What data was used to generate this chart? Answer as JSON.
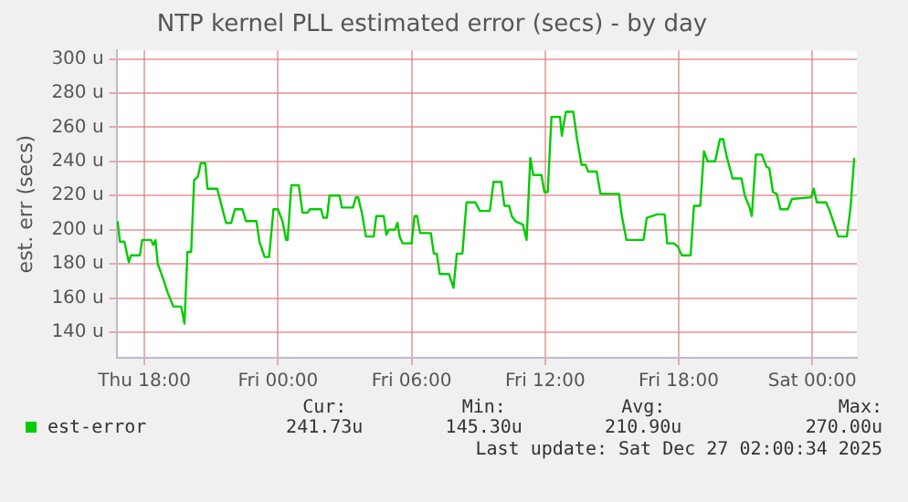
{
  "chart_data": {
    "type": "line",
    "title": "NTP kernel PLL estimated error (secs) - by day",
    "ylabel": "est. err (secs)",
    "x": [
      "2025-12-25T16:48",
      "2025-12-25T16:54",
      "2025-12-25T17:06",
      "2025-12-25T17:18",
      "2025-12-25T17:24",
      "2025-12-25T17:48",
      "2025-12-25T17:54",
      "2025-12-25T18:18",
      "2025-12-25T18:24",
      "2025-12-25T18:30",
      "2025-12-25T18:36",
      "2025-12-25T18:51",
      "2025-12-25T19:03",
      "2025-12-25T19:18",
      "2025-12-25T19:39",
      "2025-12-25T19:48",
      "2025-12-25T19:56",
      "2025-12-25T20:06",
      "2025-12-25T20:14",
      "2025-12-25T20:24",
      "2025-12-25T20:32",
      "2025-12-25T20:44",
      "2025-12-25T20:50",
      "2025-12-25T21:16",
      "2025-12-25T21:27",
      "2025-12-25T21:40",
      "2025-12-25T21:54",
      "2025-12-25T22:04",
      "2025-12-25T22:24",
      "2025-12-25T22:34",
      "2025-12-25T23:02",
      "2025-12-25T23:10",
      "2025-12-25T23:24",
      "2025-12-25T23:36",
      "2025-12-25T23:48",
      "2025-12-26T00:00",
      "2025-12-26T00:12",
      "2025-12-26T00:22",
      "2025-12-26T00:26",
      "2025-12-26T00:36",
      "2025-12-26T00:56",
      "2025-12-26T01:06",
      "2025-12-26T01:20",
      "2025-12-26T01:26",
      "2025-12-26T01:56",
      "2025-12-26T02:02",
      "2025-12-26T02:12",
      "2025-12-26T02:19",
      "2025-12-26T02:46",
      "2025-12-26T02:52",
      "2025-12-26T03:22",
      "2025-12-26T03:30",
      "2025-12-26T03:36",
      "2025-12-26T03:46",
      "2025-12-26T03:57",
      "2025-12-26T04:18",
      "2025-12-26T04:25",
      "2025-12-26T04:45",
      "2025-12-26T04:52",
      "2025-12-26T04:59",
      "2025-12-26T05:15",
      "2025-12-26T05:22",
      "2025-12-26T05:28",
      "2025-12-26T05:36",
      "2025-12-26T06:00",
      "2025-12-26T06:08",
      "2025-12-26T06:15",
      "2025-12-26T06:23",
      "2025-12-26T06:52",
      "2025-12-26T07:00",
      "2025-12-26T07:08",
      "2025-12-26T07:16",
      "2025-12-26T07:41",
      "2025-12-26T07:53",
      "2025-12-26T08:02",
      "2025-12-26T08:17",
      "2025-12-26T08:28",
      "2025-12-26T08:52",
      "2025-12-26T09:04",
      "2025-12-26T09:31",
      "2025-12-26T09:41",
      "2025-12-26T10:02",
      "2025-12-26T10:10",
      "2025-12-26T10:23",
      "2025-12-26T10:30",
      "2025-12-26T10:40",
      "2025-12-26T11:00",
      "2025-12-26T11:10",
      "2025-12-26T11:20",
      "2025-12-26T11:28",
      "2025-12-26T11:50",
      "2025-12-26T11:58",
      "2025-12-26T12:07",
      "2025-12-26T12:17",
      "2025-12-26T12:40",
      "2025-12-26T12:45",
      "2025-12-26T12:50",
      "2025-12-26T12:56",
      "2025-12-26T13:16",
      "2025-12-26T13:26",
      "2025-12-26T13:38",
      "2025-12-26T13:49",
      "2025-12-26T13:56",
      "2025-12-26T14:19",
      "2025-12-26T14:29",
      "2025-12-26T15:19",
      "2025-12-26T15:26",
      "2025-12-26T15:39",
      "2025-12-26T16:25",
      "2025-12-26T16:34",
      "2025-12-26T17:02",
      "2025-12-26T17:22",
      "2025-12-26T17:29",
      "2025-12-26T17:47",
      "2025-12-26T17:58",
      "2025-12-26T18:08",
      "2025-12-26T18:32",
      "2025-12-26T18:41",
      "2025-12-26T18:58",
      "2025-12-26T19:08",
      "2025-12-26T19:18",
      "2025-12-26T19:38",
      "2025-12-26T19:51",
      "2025-12-26T20:00",
      "2025-12-26T20:08",
      "2025-12-26T20:25",
      "2025-12-26T20:49",
      "2025-12-26T20:58",
      "2025-12-26T21:11",
      "2025-12-26T21:17",
      "2025-12-26T21:28",
      "2025-12-26T21:44",
      "2025-12-26T21:56",
      "2025-12-26T22:04",
      "2025-12-26T22:14",
      "2025-12-26T22:24",
      "2025-12-26T22:34",
      "2025-12-26T22:54",
      "2025-12-26T23:05",
      "2025-12-26T23:57",
      "2025-12-27T00:04",
      "2025-12-27T00:12",
      "2025-12-27T00:37",
      "2025-12-27T00:47",
      "2025-12-27T01:10",
      "2025-12-27T01:33",
      "2025-12-27T01:43",
      "2025-12-27T01:53"
    ],
    "series": [
      {
        "name": "est-error",
        "color": "#00cc00",
        "values": [
          205,
          193,
          193,
          181,
          185,
          185,
          194,
          194,
          191,
          194,
          180,
          171,
          163,
          155,
          155,
          145,
          187,
          187,
          229,
          231,
          239,
          239,
          224,
          224,
          215,
          204,
          204,
          212,
          212,
          205,
          205,
          193,
          184,
          184,
          212,
          212,
          205,
          194,
          194,
          226,
          226,
          210,
          210,
          212,
          212,
          207,
          207,
          220,
          220,
          213,
          213,
          219,
          219,
          210,
          196,
          196,
          208,
          208,
          197,
          200,
          200,
          204,
          196,
          192,
          192,
          208,
          208,
          198,
          198,
          186,
          186,
          174,
          174,
          166,
          186,
          186,
          216,
          216,
          211,
          211,
          228,
          228,
          214,
          214,
          208,
          205,
          203,
          194,
          242,
          232,
          232,
          222,
          222,
          266,
          266,
          255,
          262,
          269,
          269,
          253,
          238,
          238,
          234,
          234,
          221,
          221,
          209,
          194,
          194,
          207,
          209,
          209,
          192,
          192,
          190,
          185,
          185,
          214,
          214,
          246,
          240,
          240,
          253,
          253,
          244,
          230,
          230,
          220,
          213,
          208,
          244,
          244,
          237,
          236,
          222,
          221,
          212,
          212,
          218,
          219,
          224,
          216,
          216,
          211,
          196,
          196,
          213,
          242
        ]
      }
    ],
    "xlim": [
      "2025-12-25T16:45",
      "2025-12-27T02:00"
    ],
    "xticks": [
      {
        "value": "2025-12-25T18:00",
        "label": "Thu 18:00"
      },
      {
        "value": "2025-12-26T00:00",
        "label": "Fri 00:00"
      },
      {
        "value": "2025-12-26T06:00",
        "label": "Fri 06:00"
      },
      {
        "value": "2025-12-26T12:00",
        "label": "Fri 12:00"
      },
      {
        "value": "2025-12-26T18:00",
        "label": "Fri 18:00"
      },
      {
        "value": "2025-12-27T00:00",
        "label": "Sat 00:00"
      }
    ],
    "ylim": [
      125,
      305
    ],
    "yticks": [
      {
        "value": 140,
        "label": "140 u"
      },
      {
        "value": 160,
        "label": "160 u"
      },
      {
        "value": 180,
        "label": "180 u"
      },
      {
        "value": 200,
        "label": "200 u"
      },
      {
        "value": 220,
        "label": "220 u"
      },
      {
        "value": 240,
        "label": "240 u"
      },
      {
        "value": 260,
        "label": "260 u"
      },
      {
        "value": 280,
        "label": "280 u"
      },
      {
        "value": 300,
        "label": "300 u"
      }
    ],
    "grid": true,
    "legend": "bottom",
    "marker": "none",
    "line_style": "solid",
    "annotations": [
      "Cur:",
      "241.73u",
      "Min:",
      "145.30u",
      "Avg:",
      "210.90u",
      "Max:",
      "270.00u",
      "Last update: Sat Dec 27 02:00:34 2025"
    ]
  }
}
